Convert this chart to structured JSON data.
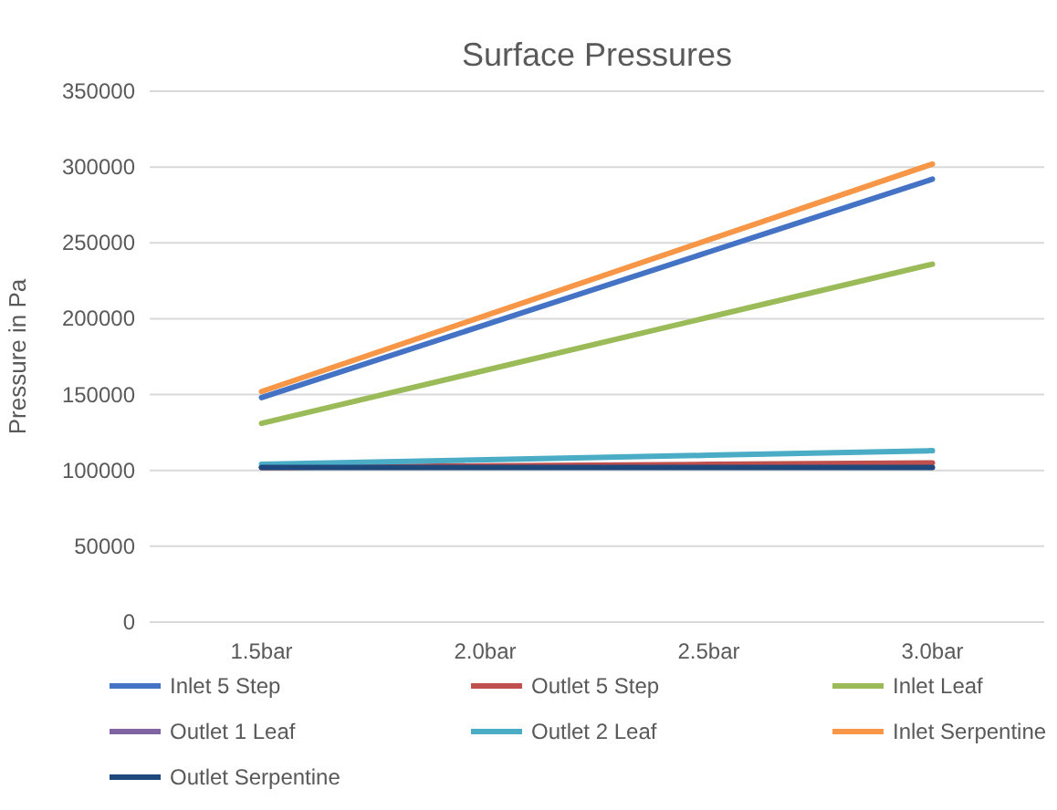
{
  "chart_data": {
    "type": "line",
    "title": "Surface Pressures",
    "ylabel": "Pressure in Pa",
    "categories": [
      "1.5bar",
      "2.0bar",
      "2.5bar",
      "3.0bar"
    ],
    "series": [
      {
        "name": "Inlet 5 Step",
        "color": "#4472c4",
        "values": [
          148000,
          196000,
          244000,
          292000
        ]
      },
      {
        "name": "Outlet 5 Step",
        "color": "#c0504d",
        "values": [
          102000,
          103000,
          104000,
          105000
        ]
      },
      {
        "name": "Inlet Leaf",
        "color": "#9bbb59",
        "values": [
          131000,
          166000,
          201000,
          236000
        ]
      },
      {
        "name": "Outlet 1 Leaf",
        "color": "#8064a2",
        "values": [
          null,
          null,
          null,
          null
        ]
      },
      {
        "name": "Outlet 2 Leaf",
        "color": "#4bacc6",
        "values": [
          104000,
          107000,
          110000,
          113000
        ]
      },
      {
        "name": "Inlet Serpentine",
        "color": "#f79646",
        "values": [
          152000,
          202000,
          252000,
          302000
        ]
      },
      {
        "name": "Outlet Serpentine",
        "color": "#1f497d",
        "values": [
          102000,
          102000,
          102000,
          102000
        ]
      }
    ],
    "ylim": [
      0,
      350000
    ],
    "yticks": [
      0,
      50000,
      100000,
      150000,
      200000,
      250000,
      300000,
      350000
    ],
    "grid": "y",
    "legend": "bottom",
    "marker": "none",
    "line_style": "solid"
  }
}
